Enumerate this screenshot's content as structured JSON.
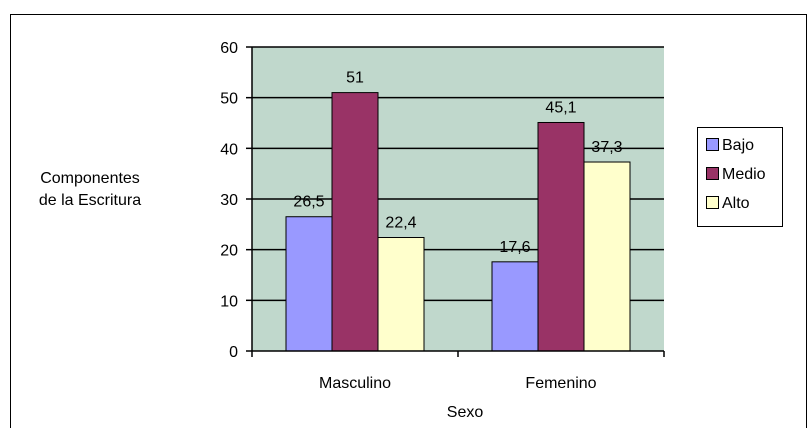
{
  "chart_data": {
    "type": "bar",
    "categories": [
      "Masculino",
      "Femenino"
    ],
    "series": [
      {
        "name": "Bajo",
        "values": [
          26.5,
          17.6
        ],
        "labels": [
          "26,5",
          "17,6"
        ],
        "color": "#9999ff"
      },
      {
        "name": "Medio",
        "values": [
          51,
          45.1
        ],
        "labels": [
          "51",
          "45,1"
        ],
        "color": "#993366"
      },
      {
        "name": "Alto",
        "values": [
          22.4,
          37.3
        ],
        "labels": [
          "22,4",
          "37,3"
        ],
        "color": "#ffffcc"
      }
    ],
    "ylabel": [
      "Componentes",
      "de la Escritura"
    ],
    "xlabel": "Sexo",
    "ylim": [
      0,
      60
    ],
    "yticks": [
      0,
      10,
      20,
      30,
      40,
      50,
      60
    ],
    "grid": true,
    "plot_background": "#c0d8cc",
    "legend_position": "right"
  }
}
